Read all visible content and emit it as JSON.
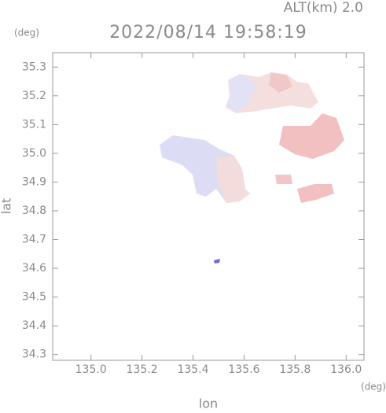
{
  "header": {
    "altitude": "ALT(km) 2.0",
    "unit_top": "(deg)",
    "timestamp": "2022/08/14 19:58:19"
  },
  "chart_data": {
    "type": "map",
    "x_label": "lon",
    "x_unit": "(deg)",
    "y_label": "lat",
    "xlim": [
      134.85,
      136.07
    ],
    "ylim": [
      34.28,
      35.35
    ],
    "xticks": [
      {
        "value": 135.0,
        "label": "135.0"
      },
      135.2,
      135.4,
      135.6,
      135.8,
      {
        "value": 136.0,
        "label": "136.0"
      }
    ],
    "yticks": [
      34.3,
      34.4,
      34.5,
      34.6,
      34.7,
      34.8,
      34.9,
      {
        "value": 35.0,
        "label": "35.0"
      },
      35.1,
      35.2,
      35.3
    ]
  }
}
